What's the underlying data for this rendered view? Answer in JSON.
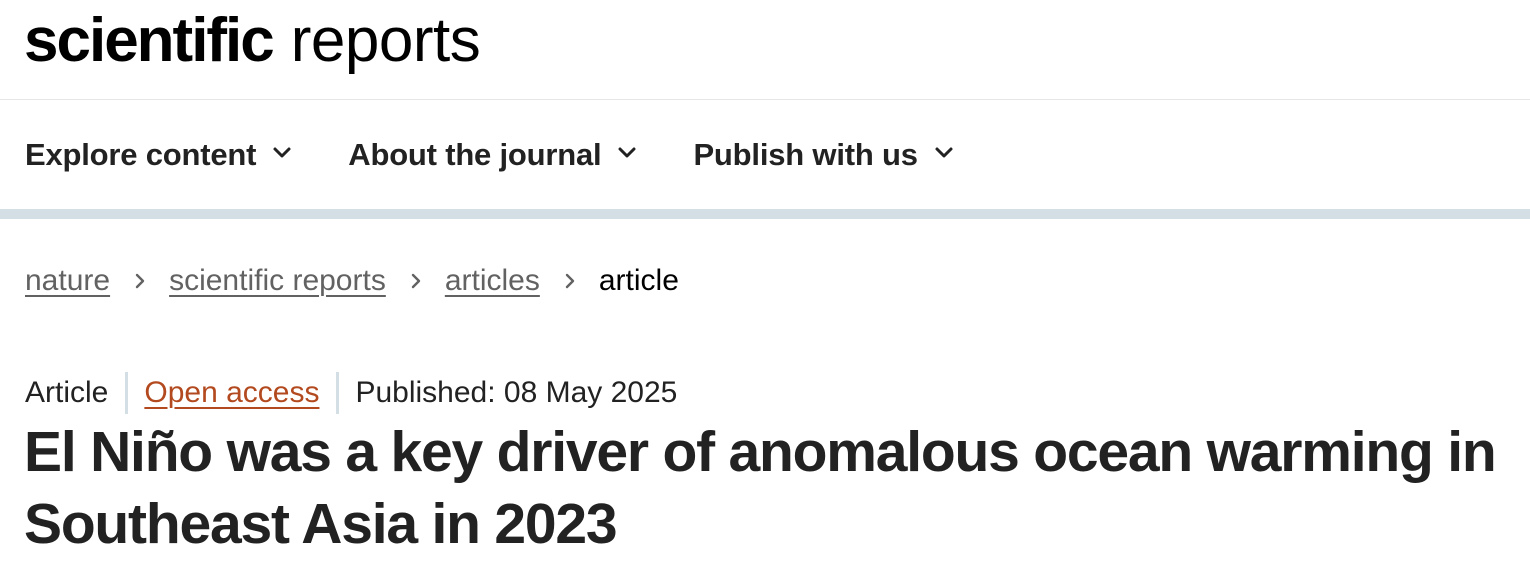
{
  "masthead": {
    "logo_strong": "scientific",
    "logo_light": "reports"
  },
  "nav": {
    "items": [
      {
        "label": "Explore content",
        "icon": "chevron-down-icon"
      },
      {
        "label": "About the journal",
        "icon": "chevron-down-icon"
      },
      {
        "label": "Publish with us",
        "icon": "chevron-down-icon"
      }
    ]
  },
  "breadcrumb": {
    "items": [
      {
        "label": "nature"
      },
      {
        "label": "scientific reports"
      },
      {
        "label": "articles"
      }
    ],
    "current": "article",
    "separator_icon": "chevron-right-icon"
  },
  "article": {
    "type": "Article",
    "access": "Open access",
    "published": "Published: 08 May 2025",
    "title": "El Niño was a key driver of anomalous ocean warming in Southeast Asia in 2023"
  },
  "colors": {
    "text": "#222222",
    "muted_link": "#626262",
    "open_access": "#b34a1f",
    "rule": "#d4dee5"
  }
}
